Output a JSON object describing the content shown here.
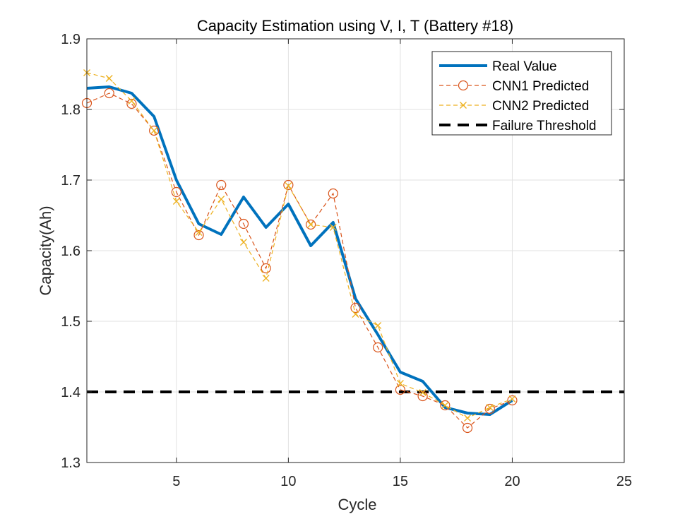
{
  "chart_data": {
    "type": "line",
    "title": "Capacity Estimation using V, I, T (Battery #18)",
    "xlabel": "Cycle",
    "ylabel": "Capacity(Ah)",
    "xlim": [
      1,
      25
    ],
    "ylim": [
      1.3,
      1.9
    ],
    "xticks": [
      5,
      10,
      15,
      20,
      25
    ],
    "yticks": [
      1.3,
      1.4,
      1.5,
      1.6,
      1.7,
      1.8,
      1.9
    ],
    "grid": true,
    "legend_position": "top-right",
    "x": [
      1,
      2,
      3,
      4,
      5,
      6,
      7,
      8,
      9,
      10,
      11,
      12,
      13,
      14,
      15,
      16,
      17,
      18,
      19,
      20
    ],
    "series": [
      {
        "name": "Real Value",
        "color": "#0072BD",
        "style": "solid-thick",
        "marker": "none",
        "values": [
          1.83,
          1.832,
          1.823,
          1.79,
          1.7,
          1.638,
          1.623,
          1.676,
          1.633,
          1.666,
          1.607,
          1.64,
          1.532,
          1.481,
          1.428,
          1.415,
          1.378,
          1.37,
          1.368,
          1.388
        ]
      },
      {
        "name": "CNN1 Predicted",
        "color": "#D95319",
        "style": "dashed",
        "marker": "circle",
        "values": [
          1.809,
          1.823,
          1.808,
          1.77,
          1.683,
          1.622,
          1.693,
          1.638,
          1.575,
          1.693,
          1.637,
          1.681,
          1.519,
          1.463,
          1.403,
          1.394,
          1.381,
          1.349,
          1.376,
          1.388
        ]
      },
      {
        "name": "CNN2 Predicted",
        "color": "#EDB120",
        "style": "dashed",
        "marker": "x",
        "values": [
          1.852,
          1.844,
          1.812,
          1.77,
          1.67,
          1.626,
          1.673,
          1.612,
          1.561,
          1.692,
          1.637,
          1.633,
          1.51,
          1.494,
          1.412,
          1.399,
          1.381,
          1.363,
          1.378,
          1.39
        ]
      },
      {
        "name": "Failure Threshold",
        "color": "#000000",
        "style": "dashed-thick",
        "marker": "none",
        "constant": 1.4
      }
    ]
  }
}
